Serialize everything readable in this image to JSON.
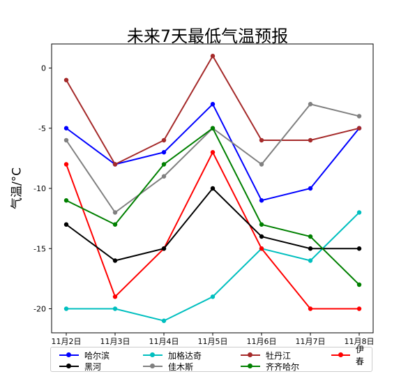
{
  "chart_data": {
    "type": "line",
    "title": "未来7天最低气温预报",
    "xlabel": "",
    "ylabel": "气温/°C",
    "categories": [
      "11月2日",
      "11月3日",
      "11月4日",
      "11月5日",
      "11月6日",
      "11月7日",
      "11月8日"
    ],
    "ylim": [
      -22,
      2
    ],
    "yticks": [
      0,
      -5,
      -10,
      -15,
      -20
    ],
    "grid": false,
    "legend_position": "bottom",
    "series": [
      {
        "name": "哈尔滨",
        "color": "#0000ff",
        "values": [
          -5,
          -8,
          -7,
          -3,
          -11,
          -10,
          -5
        ]
      },
      {
        "name": "加格达奇",
        "color": "#00bfbf",
        "values": [
          -20,
          -20,
          -21,
          -19,
          -15,
          -16,
          -12
        ]
      },
      {
        "name": "牡丹江",
        "color": "#a52a2a",
        "values": [
          -1,
          -8,
          -6,
          1,
          -6,
          -6,
          -5
        ]
      },
      {
        "name": "伊春",
        "color": "#ff0000",
        "values": [
          -8,
          -19,
          -15,
          -7,
          -15,
          -20,
          -20
        ]
      },
      {
        "name": "黑河",
        "color": "#000000",
        "values": [
          -13,
          -16,
          -15,
          -10,
          -14,
          -15,
          -15
        ]
      },
      {
        "name": "佳木斯",
        "color": "#808080",
        "values": [
          -6,
          -12,
          -9,
          -5,
          -8,
          -3,
          -4
        ]
      },
      {
        "name": "齐齐哈尔",
        "color": "#008000",
        "values": [
          -11,
          -13,
          -8,
          -5,
          -13,
          -14,
          -18
        ]
      }
    ]
  }
}
